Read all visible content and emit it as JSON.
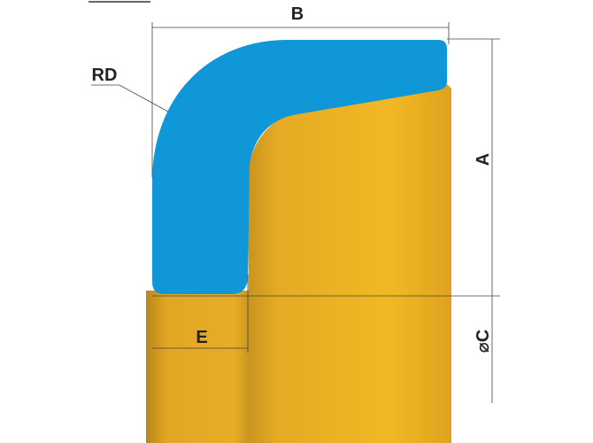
{
  "labels": {
    "b": "B",
    "rd": "RD",
    "a": "A",
    "c": "⌀C",
    "e": "E"
  }
}
